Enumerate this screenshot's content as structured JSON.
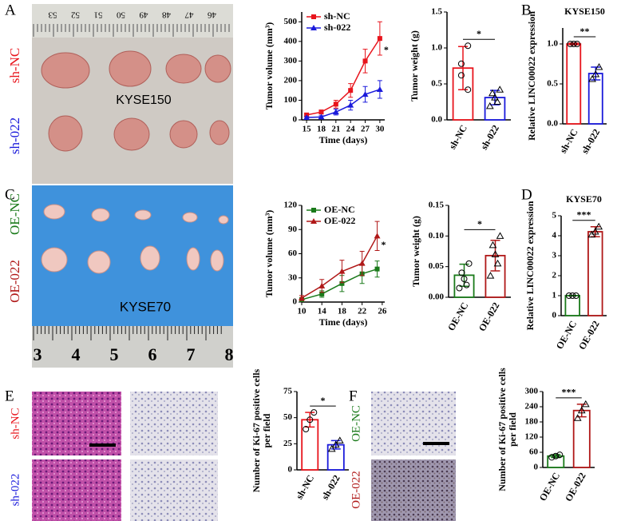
{
  "panel_letters": [
    "A",
    "B",
    "C",
    "D",
    "E",
    "F"
  ],
  "photos": {
    "A": {
      "rows": [
        {
          "label": "sh-NC",
          "color": "#e8141c"
        },
        {
          "label": "sh-022",
          "color": "#1a1adb"
        }
      ],
      "cell_line": "KYSE150",
      "ruler": [
        "53",
        "52",
        "51",
        "50",
        "49",
        "48",
        "47",
        "46"
      ]
    },
    "C": {
      "rows": [
        {
          "label": "OE-NC",
          "color": "#1a7a1a"
        },
        {
          "label": "OE-022",
          "color": "#b01818"
        }
      ],
      "cell_line": "KYSE70",
      "ruler": [
        "3",
        "4",
        "5",
        "6",
        "7",
        "8"
      ]
    },
    "E": {
      "rows": [
        {
          "label": "sh-NC",
          "color": "#e8141c"
        },
        {
          "label": "sh-022",
          "color": "#1a1adb"
        }
      ]
    },
    "F": {
      "rows": [
        {
          "label": "OE-NC",
          "color": "#1a7a1a"
        },
        {
          "label": "OE-022",
          "color": "#b01818"
        }
      ]
    }
  },
  "chart_data": [
    {
      "type": "line",
      "ylabel": "Tumor volume (mm³)",
      "xlabel": "Time (days)",
      "x": [
        15,
        18,
        21,
        24,
        27,
        30
      ],
      "xlim": [
        14,
        31
      ],
      "xticks": [
        15,
        18,
        21,
        24,
        27,
        30
      ],
      "ylim": [
        0,
        550
      ],
      "yticks": [
        0,
        100,
        200,
        300,
        400,
        500
      ],
      "series": [
        {
          "name": "sh-NC",
          "color": "#e8141c",
          "marker": "square",
          "values": [
            25,
            40,
            80,
            150,
            300,
            415
          ],
          "errors": [
            8,
            10,
            20,
            35,
            60,
            85
          ]
        },
        {
          "name": "sh-022",
          "color": "#1a1adb",
          "marker": "triangle",
          "values": [
            12,
            15,
            40,
            75,
            130,
            155
          ],
          "errors": [
            5,
            6,
            15,
            25,
            40,
            45
          ]
        }
      ],
      "significance": "*"
    },
    {
      "type": "bar",
      "ylabel": "Tumor weight (g)",
      "categories": [
        "sh-NC",
        "sh-022"
      ],
      "values": [
        0.72,
        0.31
      ],
      "errors": [
        0.3,
        0.1
      ],
      "colors": [
        "#e8141c",
        "#1a1adb"
      ],
      "points": [
        [
          1.03,
          0.78,
          0.62,
          0.42
        ],
        [
          0.42,
          0.37,
          0.31,
          0.25,
          0.19
        ]
      ],
      "ylim": [
        0,
        1.5
      ],
      "yticks": [
        {
          "value": 0,
          "label": "0.0"
        },
        0.5,
        {
          "value": 1,
          "label": "1.0"
        },
        1.5
      ],
      "significance": "*"
    },
    {
      "type": "bar",
      "title": "KYSE150",
      "ylabel": "Relative LINC00022 expression",
      "categories": [
        "sh-NC",
        "sh-022"
      ],
      "values": [
        1.0,
        0.63
      ],
      "errors": [
        0.01,
        0.08
      ],
      "colors": [
        "#e8141c",
        "#1a1adb"
      ],
      "points": [
        [
          1,
          1,
          1
        ],
        [
          0.71,
          0.62,
          0.56
        ]
      ],
      "ylim": [
        0,
        1.2
      ],
      "yticks": [
        {
          "value": 0,
          "label": "0.0"
        },
        0.5,
        {
          "value": 1,
          "label": "1.0"
        }
      ],
      "significance": "**"
    },
    {
      "type": "line",
      "ylabel": "Tumor volume (mm³)",
      "xlabel": "Time (days)",
      "x": [
        10,
        14,
        18,
        22,
        25
      ],
      "xlim": [
        10,
        26.5
      ],
      "xticks": [
        10,
        14,
        18,
        22,
        26
      ],
      "ylim": [
        0,
        120
      ],
      "yticks": [
        0,
        30,
        60,
        90,
        120
      ],
      "series": [
        {
          "name": "OE-NC",
          "color": "#1a7a1a",
          "marker": "square",
          "values": [
            3,
            10,
            23,
            35,
            41
          ],
          "errors": [
            2,
            4,
            10,
            12,
            10
          ]
        },
        {
          "name": "OE-022",
          "color": "#b01818",
          "marker": "triangle",
          "values": [
            5,
            20,
            38,
            48,
            82
          ],
          "errors": [
            3,
            8,
            14,
            15,
            18
          ]
        }
      ],
      "significance": "*"
    },
    {
      "type": "bar",
      "ylabel": "Tumor weight (g)",
      "categories": [
        "OE-NC",
        "OE-022"
      ],
      "values": [
        0.036,
        0.068
      ],
      "errors": [
        0.018,
        0.025
      ],
      "colors": [
        "#1a7a1a",
        "#b01818"
      ],
      "points": [
        [
          0.055,
          0.04,
          0.03,
          0.02,
          0.015
        ],
        [
          0.1,
          0.085,
          0.07,
          0.055,
          0.035
        ]
      ],
      "ylim": [
        0,
        0.15
      ],
      "yticks": [
        {
          "value": 0,
          "label": "0.00"
        },
        0.05,
        {
          "value": 0.1,
          "label": "0.10"
        },
        0.15
      ],
      "significance": "*"
    },
    {
      "type": "bar",
      "title": "KYSE70",
      "ylabel": "Relative LINC00022 expression",
      "categories": [
        "OE-NC",
        "OE-022"
      ],
      "values": [
        1.0,
        4.2
      ],
      "errors": [
        0.01,
        0.25
      ],
      "colors": [
        "#1a7a1a",
        "#b01818"
      ],
      "points": [
        [
          1,
          1,
          1
        ],
        [
          4.45,
          4.2,
          4.05
        ]
      ],
      "ylim": [
        0,
        5
      ],
      "yticks": [
        0,
        1,
        2,
        3,
        4,
        5
      ],
      "significance": "***"
    },
    {
      "type": "bar",
      "ylabel": [
        "Number of Ki-67 positive cells",
        "per field"
      ],
      "categories": [
        "sh-NC",
        "sh-022"
      ],
      "values": [
        48,
        24
      ],
      "errors": [
        7,
        4
      ],
      "colors": [
        "#e8141c",
        "#1a1adb"
      ],
      "points": [
        [
          55,
          48,
          39
        ],
        [
          28,
          24,
          20
        ]
      ],
      "ylim": [
        0,
        75
      ],
      "yticks": [
        0,
        25,
        50,
        75
      ],
      "significance": "*"
    },
    {
      "type": "bar",
      "ylabel": [
        "Number of Ki-67 positive cells",
        "per field"
      ],
      "categories": [
        "OE-NC",
        "OE-022"
      ],
      "values": [
        45,
        225
      ],
      "errors": [
        6,
        25
      ],
      "colors": [
        "#1a7a1a",
        "#b01818"
      ],
      "points": [
        [
          50,
          45,
          40
        ],
        [
          250,
          225,
          195
        ]
      ],
      "ylim": [
        0,
        300
      ],
      "yticks": [
        0,
        60,
        120,
        180,
        240,
        300
      ],
      "significance": "***"
    }
  ]
}
